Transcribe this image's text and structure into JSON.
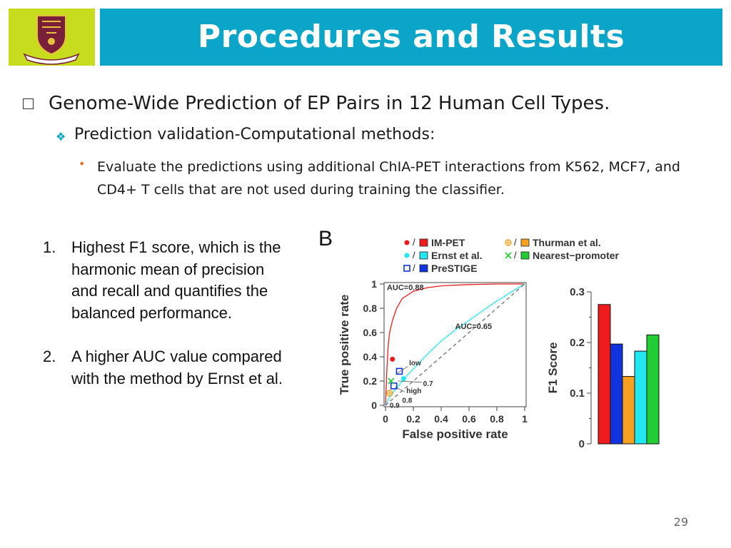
{
  "slide": {
    "title": "Procedures and Results",
    "page_number": "29",
    "colors": {
      "title_bar": "#0aa5c8",
      "logo_bg": "#c8dc1e"
    }
  },
  "bullets": {
    "level1": "Genome-Wide Prediction of EP Pairs in 12 Human Cell Types.",
    "level2": "Prediction validation-Computational methods:",
    "level3": "Evaluate the predictions using additional ChIA-PET interactions from K562, MCF7, and CD4+ T cells that are not used during training the classifier."
  },
  "numbered": [
    {
      "num": "1.",
      "text": "Highest F1 score, which is the harmonic mean of precision and recall and quantifies the balanced performance."
    },
    {
      "num": "2.",
      "text": "A higher AUC value compared with the method by Ernst et al."
    }
  ],
  "figure": {
    "panel_label": "B",
    "legend": [
      {
        "name": "IM-PET",
        "color": "#ee1c1c",
        "marker": "point"
      },
      {
        "name": "Ernst et al.",
        "color": "#22e6f0",
        "marker": "point"
      },
      {
        "name": "PreSTIGE",
        "color": "#1133dd",
        "marker": "square"
      },
      {
        "name": "Thurman et al.",
        "color": "#f5a020",
        "marker": "circle-plus"
      },
      {
        "name": "Nearest−promoter",
        "color": "#22cc33",
        "marker": "x"
      }
    ]
  },
  "chart_data": [
    {
      "type": "line",
      "xlabel": "False positive rate",
      "ylabel": "True positive rate",
      "xlim": [
        0,
        1
      ],
      "ylim": [
        0,
        1
      ],
      "xticks": [
        "0",
        "0.2",
        "0.4",
        "0.6",
        "0.8",
        "1"
      ],
      "yticks": [
        "0",
        "0.2",
        "0.4",
        "0.6",
        "0.8",
        "1"
      ],
      "annotations": [
        "AUC=0.88",
        "AUC=0.65",
        "low",
        "0.7",
        "high",
        "0.8",
        "0.9"
      ],
      "series": [
        {
          "name": "IM-PET",
          "color": "#ee1c1c",
          "x": [
            0,
            0.005,
            0.01,
            0.02,
            0.03,
            0.05,
            0.08,
            0.12,
            0.2,
            0.3,
            0.4,
            0.6,
            0.8,
            1.0
          ],
          "y": [
            0,
            0.15,
            0.3,
            0.5,
            0.6,
            0.7,
            0.8,
            0.88,
            0.94,
            0.97,
            0.985,
            0.995,
            1.0,
            1.0
          ]
        },
        {
          "name": "Ernst et al.",
          "color": "#22e6f0",
          "x": [
            0,
            0.02,
            0.05,
            0.1,
            0.15,
            0.2,
            0.3,
            0.4,
            0.5,
            0.6,
            0.7,
            0.8,
            0.9,
            1.0
          ],
          "y": [
            0,
            0.05,
            0.1,
            0.17,
            0.24,
            0.3,
            0.42,
            0.53,
            0.62,
            0.7,
            0.78,
            0.86,
            0.93,
            1.0
          ]
        },
        {
          "name": "random",
          "color": "#777777",
          "dashed": true,
          "x": [
            0,
            1
          ],
          "y": [
            0,
            1
          ]
        }
      ],
      "points": [
        {
          "series": "IM-PET",
          "x": 0.05,
          "y": 0.38,
          "marker": "point",
          "color": "#ee1c1c"
        },
        {
          "series": "Ernst et al.",
          "x": 0.13,
          "y": 0.22,
          "marker": "point",
          "color": "#22e6f0"
        },
        {
          "series": "PreSTIGE",
          "x": 0.1,
          "y": 0.28,
          "marker": "square",
          "color": "#1133dd",
          "label": "low"
        },
        {
          "series": "PreSTIGE",
          "x": 0.06,
          "y": 0.16,
          "marker": "square",
          "color": "#1133dd"
        },
        {
          "series": "Thurman et al.",
          "x": 0.03,
          "y": 0.1,
          "marker": "circle-plus",
          "color": "#f5a020",
          "label": "0.8"
        },
        {
          "series": "Nearest−promoter",
          "x": 0.04,
          "y": 0.2,
          "marker": "x",
          "color": "#22cc33"
        }
      ]
    },
    {
      "type": "bar",
      "ylabel": "F1 Score",
      "ylim": [
        0,
        0.3
      ],
      "yticks": [
        "0",
        "0.1",
        "0.2",
        "0.3"
      ],
      "categories": [
        "IM-PET",
        "PreSTIGE",
        "Thurman et al.",
        "Ernst et al.",
        "Nearest−promoter"
      ],
      "values": [
        0.275,
        0.197,
        0.133,
        0.183,
        0.215
      ],
      "colors": [
        "#ee1c1c",
        "#1133dd",
        "#f5a020",
        "#22e6f0",
        "#22cc33"
      ]
    }
  ]
}
